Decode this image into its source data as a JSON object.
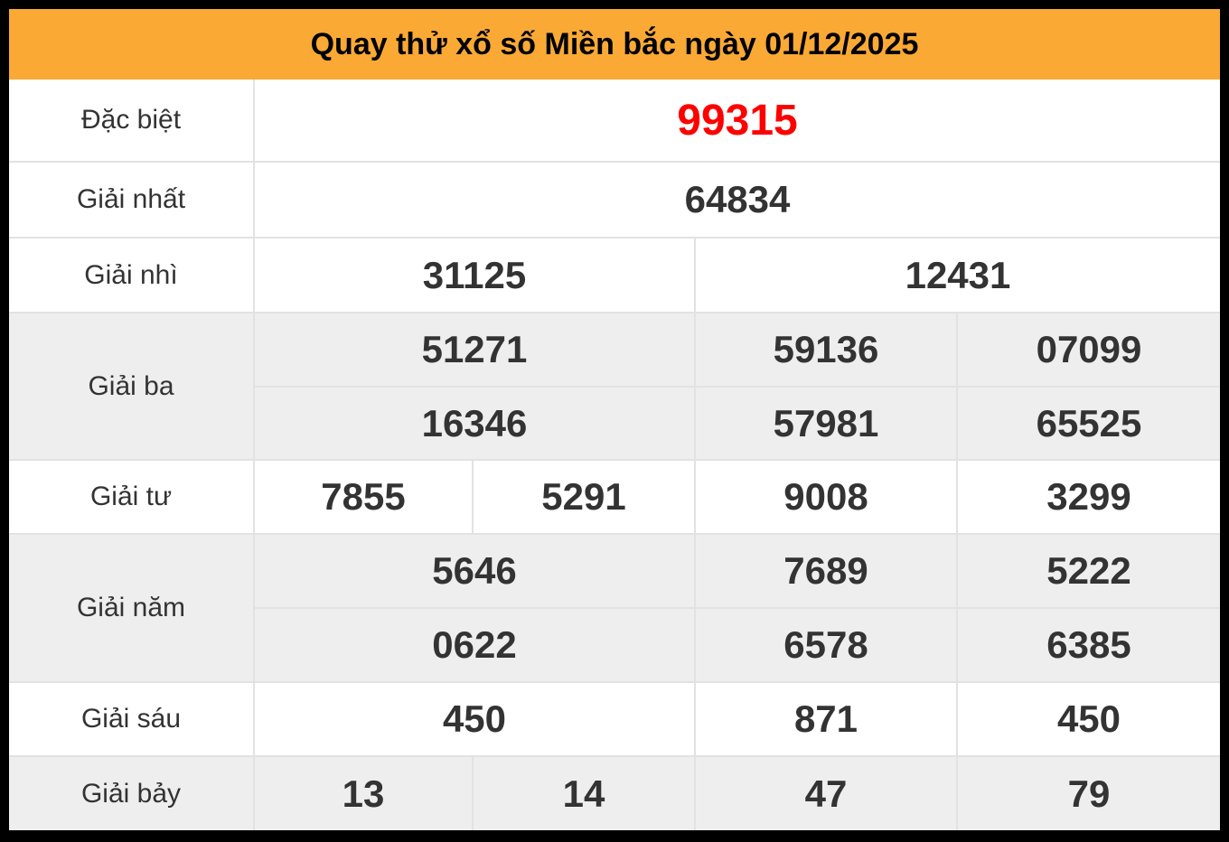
{
  "title": "Quay thử xổ số Miền bắc ngày 01/12/2025",
  "colors": {
    "header_bg": "#faa935",
    "header_text": "#000000",
    "frame": "#000000",
    "row_bg": "#ffffff",
    "row_alt_bg": "#eeeeee",
    "divider": "#e2e2e2",
    "number_text": "#333333",
    "special_number_text": "#ff0000"
  },
  "prizes": [
    {
      "label": "Đặc biệt",
      "rows": [
        [
          "99315"
        ]
      ]
    },
    {
      "label": "Giải nhất",
      "rows": [
        [
          "64834"
        ]
      ]
    },
    {
      "label": "Giải nhì",
      "rows": [
        [
          "31125",
          "12431"
        ]
      ]
    },
    {
      "label": "Giải ba",
      "rows": [
        [
          "51271",
          "59136",
          "07099"
        ],
        [
          "16346",
          "57981",
          "65525"
        ]
      ]
    },
    {
      "label": "Giải tư",
      "rows": [
        [
          "7855",
          "5291",
          "9008",
          "3299"
        ]
      ]
    },
    {
      "label": "Giải năm",
      "rows": [
        [
          "5646",
          "7689",
          "5222"
        ],
        [
          "0622",
          "6578",
          "6385"
        ]
      ]
    },
    {
      "label": "Giải sáu",
      "rows": [
        [
          "450",
          "871",
          "450"
        ]
      ]
    },
    {
      "label": "Giải bảy",
      "rows": [
        [
          "13",
          "14",
          "47",
          "79"
        ]
      ]
    }
  ]
}
